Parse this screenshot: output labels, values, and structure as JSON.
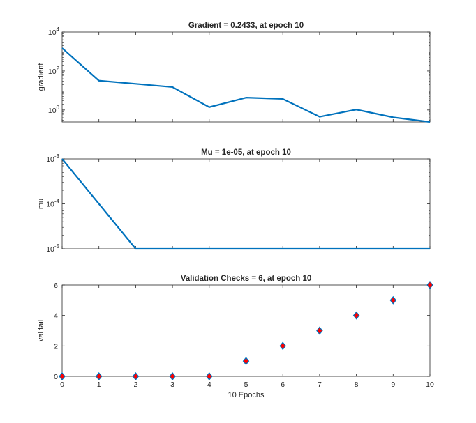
{
  "figure": {
    "background": "#ffffff",
    "line_color": "#0072bd",
    "marker_fill": "#ff0000",
    "marker_edge": "#0072bd",
    "axis_color": "#262626"
  },
  "chart_data": [
    {
      "type": "line",
      "title": "Gradient = 0.2433, at epoch 10",
      "ylabel": "gradient",
      "xlabel": "",
      "yscale": "log",
      "xlim": [
        0,
        10
      ],
      "ylim": [
        0.2433,
        10000
      ],
      "yticks": [
        {
          "value": 1,
          "base": "10",
          "exp": "0"
        },
        {
          "value": 100,
          "base": "10",
          "exp": "2"
        },
        {
          "value": 10000,
          "base": "10",
          "exp": "4"
        }
      ],
      "x": [
        0,
        1,
        2,
        3,
        4,
        5,
        6,
        7,
        8,
        9,
        10
      ],
      "series": [
        {
          "values": [
            1500,
            32,
            22,
            15,
            1.4,
            4.3,
            3.7,
            0.45,
            1.05,
            0.42,
            0.2433
          ]
        }
      ],
      "grid": false
    },
    {
      "type": "line",
      "title": "Mu = 1e-05, at epoch 10",
      "ylabel": "mu",
      "xlabel": "",
      "yscale": "log",
      "xlim": [
        0,
        10
      ],
      "ylim": [
        1e-05,
        0.001
      ],
      "yticks": [
        {
          "value": 1e-05,
          "base": "10",
          "exp": "-5"
        },
        {
          "value": 0.0001,
          "base": "10",
          "exp": "-4"
        },
        {
          "value": 0.001,
          "base": "10",
          "exp": "-3"
        }
      ],
      "x": [
        0,
        1,
        2,
        3,
        4,
        5,
        6,
        7,
        8,
        9,
        10
      ],
      "series": [
        {
          "values": [
            0.001,
            0.0001,
            1e-05,
            1e-05,
            1e-05,
            1e-05,
            1e-05,
            1e-05,
            1e-05,
            1e-05,
            1e-05
          ]
        }
      ],
      "grid": false
    },
    {
      "type": "scatter",
      "title": "Validation Checks = 6, at epoch 10",
      "ylabel": "val fail",
      "xlabel": "10 Epochs",
      "yscale": "linear",
      "xlim": [
        0,
        10
      ],
      "ylim": [
        0,
        6
      ],
      "yticks": [
        {
          "value": 0,
          "label": "0"
        },
        {
          "value": 2,
          "label": "2"
        },
        {
          "value": 4,
          "label": "4"
        },
        {
          "value": 6,
          "label": "6"
        }
      ],
      "xticks": [
        "0",
        "1",
        "2",
        "3",
        "4",
        "5",
        "6",
        "7",
        "8",
        "9",
        "10"
      ],
      "x": [
        0,
        1,
        2,
        3,
        4,
        5,
        6,
        7,
        8,
        9,
        10
      ],
      "series": [
        {
          "values": [
            0,
            0,
            0,
            0,
            0,
            1,
            2,
            3,
            4,
            5,
            6
          ]
        }
      ],
      "grid": false
    }
  ]
}
